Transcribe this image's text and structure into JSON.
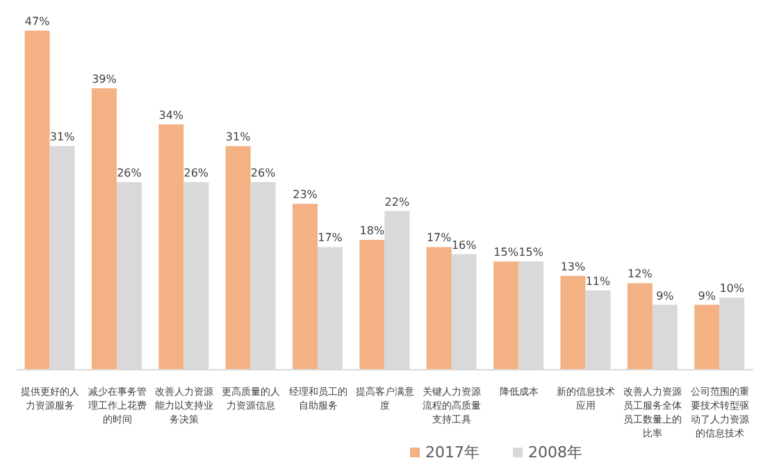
{
  "chart_data": {
    "type": "bar",
    "categories": [
      "提供更好的人力资源服务",
      "减少在事务管理工作上花费的时间",
      "改善人力资源能力以支持业务决策",
      "更高质量的人力资源信息",
      "经理和员工的自助服务",
      "提高客户满意度",
      "关键人力资源流程的高质量支持工具",
      "降低成本",
      "新的信息技术应用",
      "改善人力资源员工服务全体员工数量上的比率",
      "公司范围的重要技术转型驱动了人力资源的信息技术"
    ],
    "series": [
      {
        "name": "2017年",
        "color": "#f4b183",
        "values": [
          47,
          39,
          34,
          31,
          23,
          18,
          17,
          15,
          13,
          12,
          9
        ],
        "value_labels": [
          "47%",
          "39%",
          "34%",
          "31%",
          "23%",
          "18%",
          "17%",
          "15%",
          "13%",
          "12%",
          "9%"
        ]
      },
      {
        "name": "2008年",
        "color": "#d9d9d9",
        "values": [
          31,
          26,
          26,
          26,
          17,
          22,
          16,
          15,
          11,
          9,
          10
        ],
        "value_labels": [
          "31%",
          "26%",
          "26%",
          "26%",
          "17%",
          "22%",
          "16%",
          "15%",
          "11%",
          "9%",
          "10%"
        ]
      }
    ],
    "legend": "bottom"
  }
}
